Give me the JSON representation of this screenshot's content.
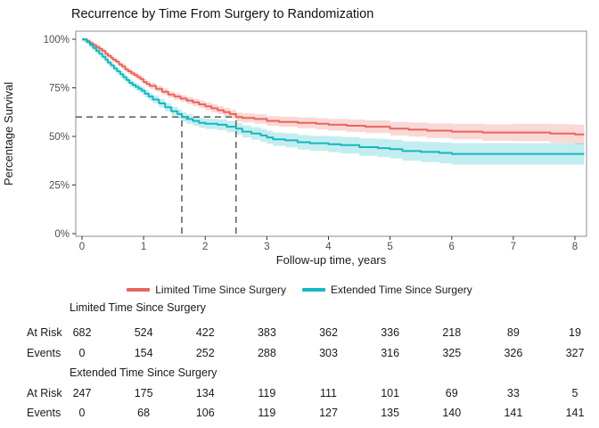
{
  "chart_data": {
    "type": "line",
    "subtype": "kaplan-meier",
    "title": "Recurrence by Time From Surgery to Randomization",
    "xlabel": "Follow-up time, years",
    "ylabel": "Percentage Survival",
    "xlim": [
      0,
      8.2
    ],
    "ylim": [
      0,
      100
    ],
    "xticks": [
      0,
      1,
      2,
      3,
      4,
      5,
      6,
      7,
      8
    ],
    "yticks": [
      0,
      25,
      50,
      75,
      100
    ],
    "ytick_labels": [
      "0%",
      "25%",
      "50%",
      "75%",
      "100%"
    ],
    "grid": false,
    "legend_position": "bottom",
    "colors": {
      "panel_border": "#8c8c8c",
      "guide": "#666666",
      "tick_text": "#4d4d4d"
    },
    "median_guides": {
      "y": 60,
      "x_extended": 1.62,
      "x_limited": 2.5
    },
    "series": [
      {
        "key": "limited",
        "name": "Limited Time Since Surgery",
        "color": "#E8655C",
        "band_color": "rgba(232,101,92,0.25)",
        "band": {
          "h0": 1,
          "h1": 5
        },
        "points": [
          [
            0,
            100
          ],
          [
            0.07,
            99
          ],
          [
            0.13,
            98
          ],
          [
            0.18,
            97
          ],
          [
            0.23,
            96
          ],
          [
            0.28,
            95
          ],
          [
            0.33,
            94
          ],
          [
            0.38,
            92.5
          ],
          [
            0.42,
            91.5
          ],
          [
            0.47,
            90.5
          ],
          [
            0.5,
            89.5
          ],
          [
            0.55,
            88.5
          ],
          [
            0.6,
            87
          ],
          [
            0.65,
            86
          ],
          [
            0.7,
            84.5
          ],
          [
            0.75,
            83.5
          ],
          [
            0.8,
            82.5
          ],
          [
            0.85,
            81.5
          ],
          [
            0.9,
            80.5
          ],
          [
            0.95,
            79.5
          ],
          [
            1.0,
            78
          ],
          [
            1.05,
            77
          ],
          [
            1.1,
            76
          ],
          [
            1.2,
            74.5
          ],
          [
            1.3,
            73
          ],
          [
            1.4,
            71.5
          ],
          [
            1.5,
            70.5
          ],
          [
            1.6,
            69.5
          ],
          [
            1.7,
            68.5
          ],
          [
            1.8,
            67.5
          ],
          [
            1.9,
            66.5
          ],
          [
            2.0,
            65.5
          ],
          [
            2.1,
            64.5
          ],
          [
            2.2,
            63.5
          ],
          [
            2.3,
            62.5
          ],
          [
            2.4,
            61.5
          ],
          [
            2.5,
            60
          ],
          [
            2.6,
            59.5
          ],
          [
            2.8,
            59
          ],
          [
            3.0,
            58
          ],
          [
            3.2,
            57.5
          ],
          [
            3.5,
            57
          ],
          [
            3.8,
            56.5
          ],
          [
            4.0,
            56
          ],
          [
            4.3,
            55.5
          ],
          [
            4.6,
            55
          ],
          [
            5.0,
            54
          ],
          [
            5.3,
            53.5
          ],
          [
            5.6,
            53
          ],
          [
            6.0,
            52.5
          ],
          [
            6.5,
            52
          ],
          [
            7.0,
            52
          ],
          [
            7.6,
            51.5
          ],
          [
            8.0,
            51
          ],
          [
            8.15,
            51
          ]
        ]
      },
      {
        "key": "extended",
        "name": "Extended Time Since Surgery",
        "color": "#14B8BE",
        "band_color": "rgba(20,184,190,0.25)",
        "band": {
          "h0": 1.2,
          "h1": 7
        },
        "points": [
          [
            0,
            100
          ],
          [
            0.08,
            98.5
          ],
          [
            0.13,
            97
          ],
          [
            0.18,
            95.5
          ],
          [
            0.23,
            94
          ],
          [
            0.28,
            92.5
          ],
          [
            0.33,
            91
          ],
          [
            0.38,
            89.5
          ],
          [
            0.42,
            88
          ],
          [
            0.47,
            86.5
          ],
          [
            0.52,
            85
          ],
          [
            0.57,
            83.5
          ],
          [
            0.62,
            82
          ],
          [
            0.67,
            80.5
          ],
          [
            0.72,
            79
          ],
          [
            0.77,
            77.5
          ],
          [
            0.82,
            76.5
          ],
          [
            0.87,
            75.5
          ],
          [
            0.92,
            74.5
          ],
          [
            0.97,
            73.5
          ],
          [
            1.02,
            72
          ],
          [
            1.08,
            70.5
          ],
          [
            1.15,
            69
          ],
          [
            1.25,
            67
          ],
          [
            1.35,
            65
          ],
          [
            1.45,
            63
          ],
          [
            1.55,
            61.5
          ],
          [
            1.62,
            60
          ],
          [
            1.7,
            59
          ],
          [
            1.8,
            58
          ],
          [
            1.9,
            57
          ],
          [
            2.0,
            56.5
          ],
          [
            2.2,
            56
          ],
          [
            2.35,
            55
          ],
          [
            2.5,
            54
          ],
          [
            2.6,
            52.5
          ],
          [
            2.75,
            51.5
          ],
          [
            2.9,
            50.5
          ],
          [
            3.0,
            49.5
          ],
          [
            3.1,
            48.5
          ],
          [
            3.3,
            48
          ],
          [
            3.5,
            47
          ],
          [
            3.7,
            46.5
          ],
          [
            4.0,
            46
          ],
          [
            4.2,
            45.5
          ],
          [
            4.5,
            44.5
          ],
          [
            4.8,
            44
          ],
          [
            5.0,
            43.5
          ],
          [
            5.2,
            42.5
          ],
          [
            5.5,
            42
          ],
          [
            5.8,
            41.5
          ],
          [
            6.0,
            41
          ],
          [
            8.15,
            41
          ]
        ]
      }
    ],
    "risk_table": {
      "time_points": [
        0,
        1,
        2,
        3,
        4,
        5,
        6,
        7,
        8
      ],
      "row_labels": {
        "at_risk": "At Risk",
        "events": "Events"
      },
      "groups": [
        {
          "name": "Limited Time Since Surgery",
          "at_risk": [
            682,
            524,
            422,
            383,
            362,
            336,
            218,
            89,
            19
          ],
          "events": [
            0,
            154,
            252,
            288,
            303,
            316,
            325,
            326,
            327
          ]
        },
        {
          "name": "Extended Time Since Surgery",
          "at_risk": [
            247,
            175,
            134,
            119,
            111,
            101,
            69,
            33,
            5
          ],
          "events": [
            0,
            68,
            106,
            119,
            127,
            135,
            140,
            141,
            141
          ]
        }
      ]
    }
  }
}
